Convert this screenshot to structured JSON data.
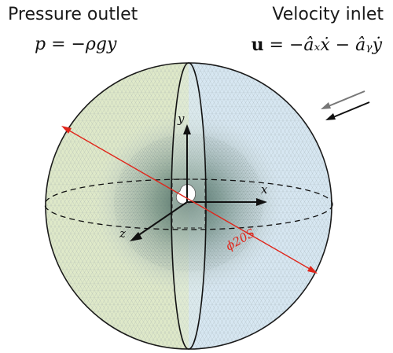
{
  "labels": {
    "left_title": "Pressure outlet",
    "left_formula": "p = −ρgy",
    "right_title": "Velocity inlet",
    "right_formula_bold": "u",
    "right_formula_rest": " = −âₓẋ − âᵧẏ",
    "axis_x": "x",
    "axis_y": "y",
    "axis_z": "z",
    "diameter": "ϕ20S"
  },
  "colors": {
    "outlet_half": "#dfe9c9",
    "inlet_half": "#d7e7f2",
    "core_dark": "#5e7a6f",
    "diameter_line": "#e0261b",
    "mesh": "#8fa2a6"
  }
}
